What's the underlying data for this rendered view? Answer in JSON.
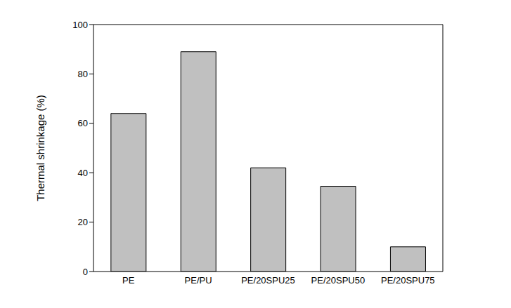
{
  "chart_data": {
    "type": "bar",
    "y_label": "Thermal shrinkage (%)",
    "categories": [
      "PE",
      "PE/PU",
      "PE/20SPU25",
      "PE/20SPU50",
      "PE/20SPU75"
    ],
    "values": [
      64,
      89,
      42,
      34.5,
      10
    ],
    "color": "#c0c0c0",
    "ylim": [
      0,
      100
    ],
    "yticks": [
      0,
      20,
      40,
      60,
      80,
      100
    ],
    "grid": false
  }
}
